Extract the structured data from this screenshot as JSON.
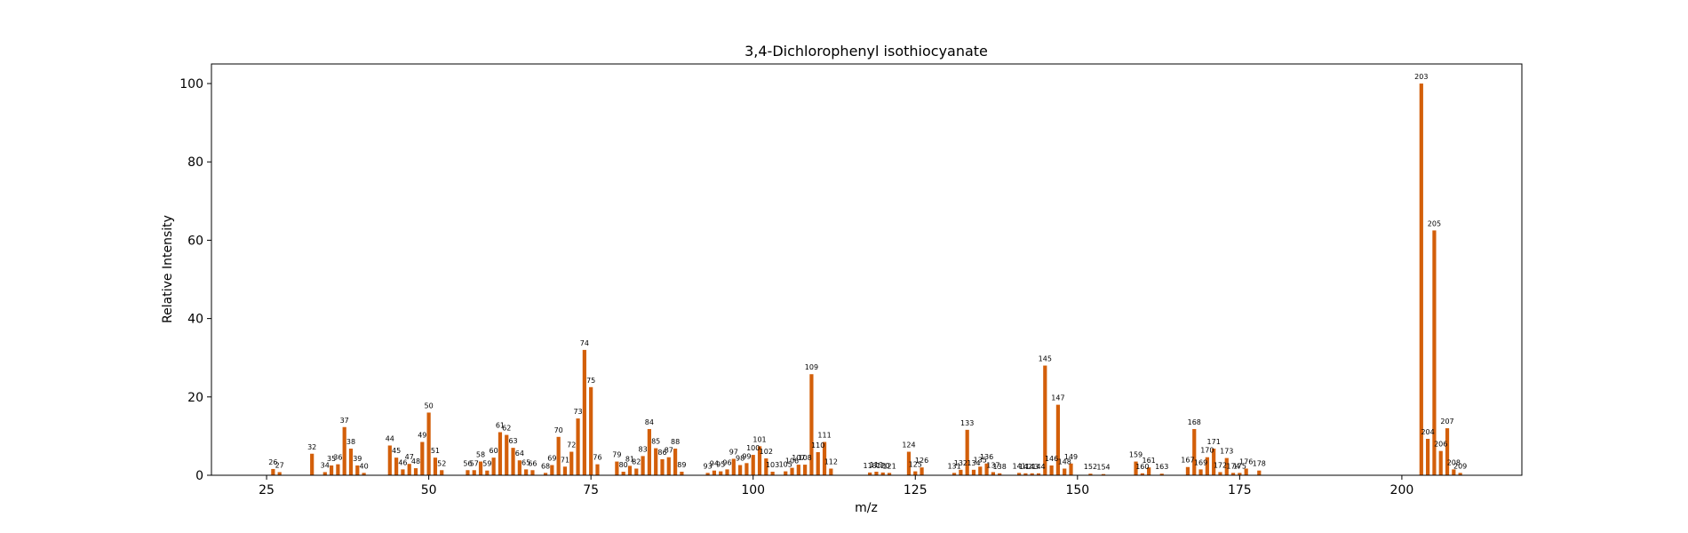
{
  "chart_data": {
    "type": "bar",
    "title": "3,4-Dichlorophenyl isothiocyanate",
    "xlabel": "m/z",
    "ylabel": "Relative Intensity",
    "xlim": [
      16.5,
      218.5
    ],
    "ylim": [
      0,
      105
    ],
    "xticks": [
      25,
      50,
      75,
      100,
      125,
      150,
      175,
      200
    ],
    "yticks": [
      0,
      20,
      40,
      60,
      80,
      100
    ],
    "grid": false,
    "bar_color": "#d35f0a",
    "peaks": [
      {
        "mz": 26,
        "intensity": 1.6
      },
      {
        "mz": 27,
        "intensity": 0.8
      },
      {
        "mz": 32,
        "intensity": 5.5
      },
      {
        "mz": 34,
        "intensity": 0.8
      },
      {
        "mz": 35,
        "intensity": 2.5
      },
      {
        "mz": 36,
        "intensity": 2.8
      },
      {
        "mz": 37,
        "intensity": 12.3
      },
      {
        "mz": 38,
        "intensity": 6.8
      },
      {
        "mz": 39,
        "intensity": 2.5
      },
      {
        "mz": 40,
        "intensity": 0.6
      },
      {
        "mz": 44,
        "intensity": 7.6
      },
      {
        "mz": 45,
        "intensity": 4.5
      },
      {
        "mz": 46,
        "intensity": 1.5
      },
      {
        "mz": 47,
        "intensity": 2.9
      },
      {
        "mz": 48,
        "intensity": 1.8
      },
      {
        "mz": 49,
        "intensity": 8.5
      },
      {
        "mz": 50,
        "intensity": 16.0
      },
      {
        "mz": 51,
        "intensity": 4.5
      },
      {
        "mz": 52,
        "intensity": 1.3
      },
      {
        "mz": 56,
        "intensity": 1.3
      },
      {
        "mz": 57,
        "intensity": 1.3
      },
      {
        "mz": 58,
        "intensity": 3.5
      },
      {
        "mz": 59,
        "intensity": 1.2
      },
      {
        "mz": 60,
        "intensity": 4.5
      },
      {
        "mz": 61,
        "intensity": 11.0
      },
      {
        "mz": 62,
        "intensity": 10.3
      },
      {
        "mz": 63,
        "intensity": 7.0
      },
      {
        "mz": 64,
        "intensity": 3.8
      },
      {
        "mz": 65,
        "intensity": 1.5
      },
      {
        "mz": 66,
        "intensity": 1.3
      },
      {
        "mz": 68,
        "intensity": 0.6
      },
      {
        "mz": 69,
        "intensity": 2.6
      },
      {
        "mz": 70,
        "intensity": 9.8
      },
      {
        "mz": 71,
        "intensity": 2.2
      },
      {
        "mz": 72,
        "intensity": 6.0
      },
      {
        "mz": 73,
        "intensity": 14.5
      },
      {
        "mz": 74,
        "intensity": 32.0
      },
      {
        "mz": 75,
        "intensity": 22.5
      },
      {
        "mz": 76,
        "intensity": 2.8
      },
      {
        "mz": 79,
        "intensity": 3.5
      },
      {
        "mz": 80,
        "intensity": 0.9
      },
      {
        "mz": 81,
        "intensity": 2.4
      },
      {
        "mz": 82,
        "intensity": 1.7
      },
      {
        "mz": 83,
        "intensity": 4.9
      },
      {
        "mz": 84,
        "intensity": 11.8
      },
      {
        "mz": 85,
        "intensity": 6.9
      },
      {
        "mz": 86,
        "intensity": 4.1
      },
      {
        "mz": 87,
        "intensity": 4.6
      },
      {
        "mz": 88,
        "intensity": 6.8
      },
      {
        "mz": 89,
        "intensity": 0.9
      },
      {
        "mz": 93,
        "intensity": 0.6
      },
      {
        "mz": 94,
        "intensity": 1.2
      },
      {
        "mz": 95,
        "intensity": 1.0
      },
      {
        "mz": 96,
        "intensity": 1.5
      },
      {
        "mz": 97,
        "intensity": 4.2
      },
      {
        "mz": 98,
        "intensity": 2.6
      },
      {
        "mz": 99,
        "intensity": 3.1
      },
      {
        "mz": 100,
        "intensity": 5.2
      },
      {
        "mz": 101,
        "intensity": 7.4
      },
      {
        "mz": 102,
        "intensity": 4.3
      },
      {
        "mz": 103,
        "intensity": 0.9
      },
      {
        "mz": 105,
        "intensity": 1.0
      },
      {
        "mz": 106,
        "intensity": 1.9
      },
      {
        "mz": 107,
        "intensity": 2.7
      },
      {
        "mz": 108,
        "intensity": 2.7
      },
      {
        "mz": 109,
        "intensity": 25.8
      },
      {
        "mz": 110,
        "intensity": 5.9
      },
      {
        "mz": 111,
        "intensity": 8.5
      },
      {
        "mz": 112,
        "intensity": 1.7
      },
      {
        "mz": 118,
        "intensity": 0.7
      },
      {
        "mz": 119,
        "intensity": 0.9
      },
      {
        "mz": 120,
        "intensity": 0.7
      },
      {
        "mz": 121,
        "intensity": 0.6
      },
      {
        "mz": 124,
        "intensity": 6.0
      },
      {
        "mz": 125,
        "intensity": 1.0
      },
      {
        "mz": 126,
        "intensity": 2.0
      },
      {
        "mz": 131,
        "intensity": 0.6
      },
      {
        "mz": 132,
        "intensity": 1.4
      },
      {
        "mz": 133,
        "intensity": 11.6
      },
      {
        "mz": 134,
        "intensity": 1.4
      },
      {
        "mz": 135,
        "intensity": 2.2
      },
      {
        "mz": 136,
        "intensity": 3.0
      },
      {
        "mz": 137,
        "intensity": 0.8
      },
      {
        "mz": 138,
        "intensity": 0.5
      },
      {
        "mz": 141,
        "intensity": 0.6
      },
      {
        "mz": 142,
        "intensity": 0.5
      },
      {
        "mz": 143,
        "intensity": 0.5
      },
      {
        "mz": 144,
        "intensity": 0.5
      },
      {
        "mz": 145,
        "intensity": 28.0
      },
      {
        "mz": 146,
        "intensity": 2.5
      },
      {
        "mz": 147,
        "intensity": 18.0
      },
      {
        "mz": 148,
        "intensity": 1.7
      },
      {
        "mz": 149,
        "intensity": 3.0
      },
      {
        "mz": 152,
        "intensity": 0.4
      },
      {
        "mz": 154,
        "intensity": 0.3
      },
      {
        "mz": 159,
        "intensity": 3.5
      },
      {
        "mz": 160,
        "intensity": 0.5
      },
      {
        "mz": 161,
        "intensity": 2.0
      },
      {
        "mz": 163,
        "intensity": 0.4
      },
      {
        "mz": 167,
        "intensity": 2.1
      },
      {
        "mz": 168,
        "intensity": 11.8
      },
      {
        "mz": 169,
        "intensity": 1.5
      },
      {
        "mz": 170,
        "intensity": 4.6
      },
      {
        "mz": 171,
        "intensity": 6.8
      },
      {
        "mz": 172,
        "intensity": 0.8
      },
      {
        "mz": 173,
        "intensity": 4.4
      },
      {
        "mz": 174,
        "intensity": 0.6
      },
      {
        "mz": 175,
        "intensity": 0.6
      },
      {
        "mz": 176,
        "intensity": 1.7
      },
      {
        "mz": 178,
        "intensity": 1.2
      },
      {
        "mz": 203,
        "intensity": 100.0
      },
      {
        "mz": 204,
        "intensity": 9.3
      },
      {
        "mz": 205,
        "intensity": 62.5
      },
      {
        "mz": 206,
        "intensity": 6.2
      },
      {
        "mz": 207,
        "intensity": 12.0
      },
      {
        "mz": 208,
        "intensity": 1.5
      },
      {
        "mz": 209,
        "intensity": 0.6
      }
    ]
  }
}
